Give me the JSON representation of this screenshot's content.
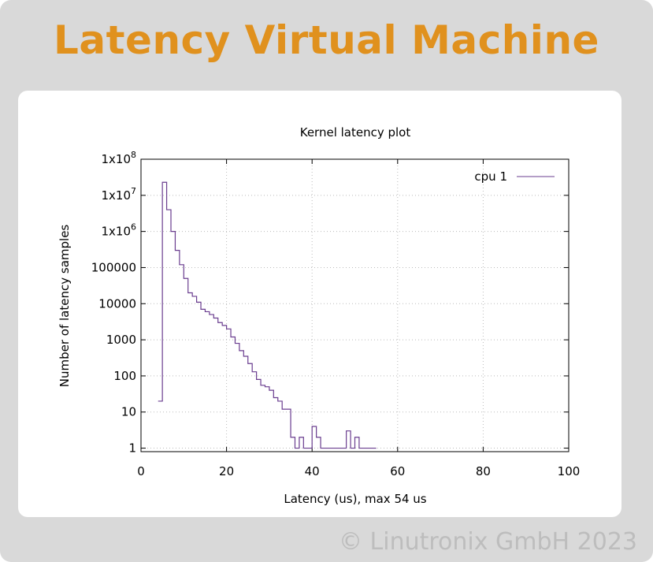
{
  "banner_title": "Latency Virtual Machine",
  "copyright": "© Linutronix GmbH 2023",
  "colors": {
    "accent": "#e0911e",
    "series": "#6a3d8f",
    "background": "#d9d9d9"
  },
  "chart_data": {
    "type": "line",
    "title": "Kernel latency plot",
    "xlabel": "Latency (us), max 54 us",
    "ylabel": "Number of latency samples",
    "xlim": [
      0,
      100
    ],
    "ylim": [
      0.8,
      100000000
    ],
    "yscale": "log",
    "grid": true,
    "legend_position": "top-right",
    "x_ticks": [
      "0",
      "20",
      "40",
      "60",
      "80",
      "100"
    ],
    "y_ticks": [
      {
        "value": 1,
        "label": "1"
      },
      {
        "value": 10,
        "label": "10"
      },
      {
        "value": 100,
        "label": "100"
      },
      {
        "value": 1000,
        "label": "1000"
      },
      {
        "value": 10000,
        "label": "10000"
      },
      {
        "value": 100000,
        "label": "100000"
      },
      {
        "value": 1000000,
        "base": "1x10",
        "exp": "6"
      },
      {
        "value": 10000000,
        "base": "1x10",
        "exp": "7"
      },
      {
        "value": 100000000,
        "base": "1x10",
        "exp": "8"
      }
    ],
    "series": [
      {
        "name": "cpu 1",
        "style": "step",
        "x": [
          4,
          5,
          6,
          7,
          8,
          9,
          10,
          11,
          12,
          13,
          14,
          15,
          16,
          17,
          18,
          19,
          20,
          21,
          22,
          23,
          24,
          25,
          26,
          27,
          28,
          29,
          30,
          31,
          32,
          33,
          34,
          35,
          36,
          37,
          38,
          39,
          40,
          41,
          42,
          43,
          44,
          45,
          46,
          47,
          48,
          49,
          50,
          51,
          52,
          53,
          54
        ],
        "y": [
          20,
          23000000,
          4000000,
          1000000,
          300000,
          120000,
          50000,
          20000,
          16000,
          11000,
          7000,
          6000,
          5000,
          4000,
          3000,
          2500,
          2000,
          1200,
          800,
          500,
          350,
          220,
          130,
          80,
          55,
          50,
          40,
          25,
          20,
          12,
          12,
          2,
          1,
          2,
          1,
          1,
          4,
          2,
          1,
          1,
          1,
          1,
          1,
          1,
          3,
          1,
          2,
          1,
          1,
          1,
          1
        ]
      }
    ]
  }
}
